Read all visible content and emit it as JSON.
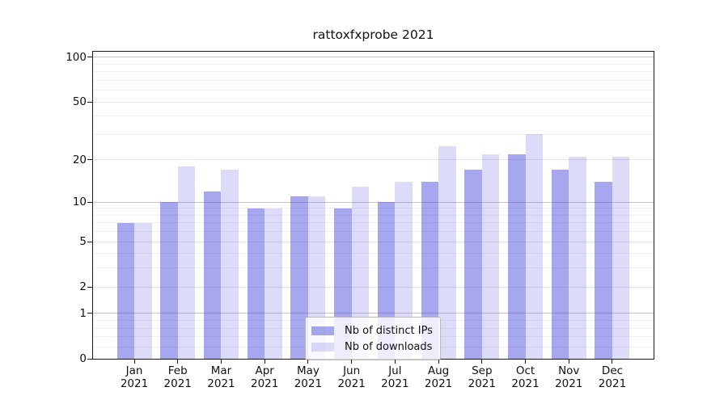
{
  "chart_data": {
    "type": "bar",
    "title": "rattoxfxprobe 2021",
    "categories": [
      "Jan",
      "Feb",
      "Mar",
      "Apr",
      "May",
      "Jun",
      "Jul",
      "Aug",
      "Sep",
      "Oct",
      "Nov",
      "Dec"
    ],
    "category_year": "2021",
    "series": [
      {
        "name": "Nb of distinct IPs",
        "color": "rgba(68,68,221,0.47)",
        "values": [
          7,
          10,
          12,
          9,
          11,
          9,
          10,
          14,
          17,
          22,
          17,
          14
        ]
      },
      {
        "name": "Nb of downloads",
        "color": "rgba(68,68,221,0.19)",
        "values": [
          7,
          18,
          17,
          9,
          11,
          13,
          14,
          25,
          22,
          30,
          21,
          21
        ]
      }
    ],
    "y_axis": {
      "scale": "log10(1+x)",
      "ticks": [
        100,
        50,
        20,
        10,
        5,
        2,
        1,
        0
      ],
      "range": [
        0,
        110
      ]
    },
    "x_axis": {
      "tick_label_lines": [
        "month",
        "year"
      ]
    },
    "legend": {
      "position": "lower center",
      "entries": [
        "Nb of distinct IPs",
        "Nb of downloads"
      ]
    },
    "grid": "horizontal, major and minor"
  },
  "colors": {
    "bar_ips": "rgba(68,68,221,0.47)",
    "bar_downloads": "rgba(68,68,221,0.19)",
    "grid_major": "#c6c6c6",
    "grid_mid": "#e3e3e3",
    "grid_minor": "#f0f0f0",
    "axis": "#1a1a1a"
  }
}
